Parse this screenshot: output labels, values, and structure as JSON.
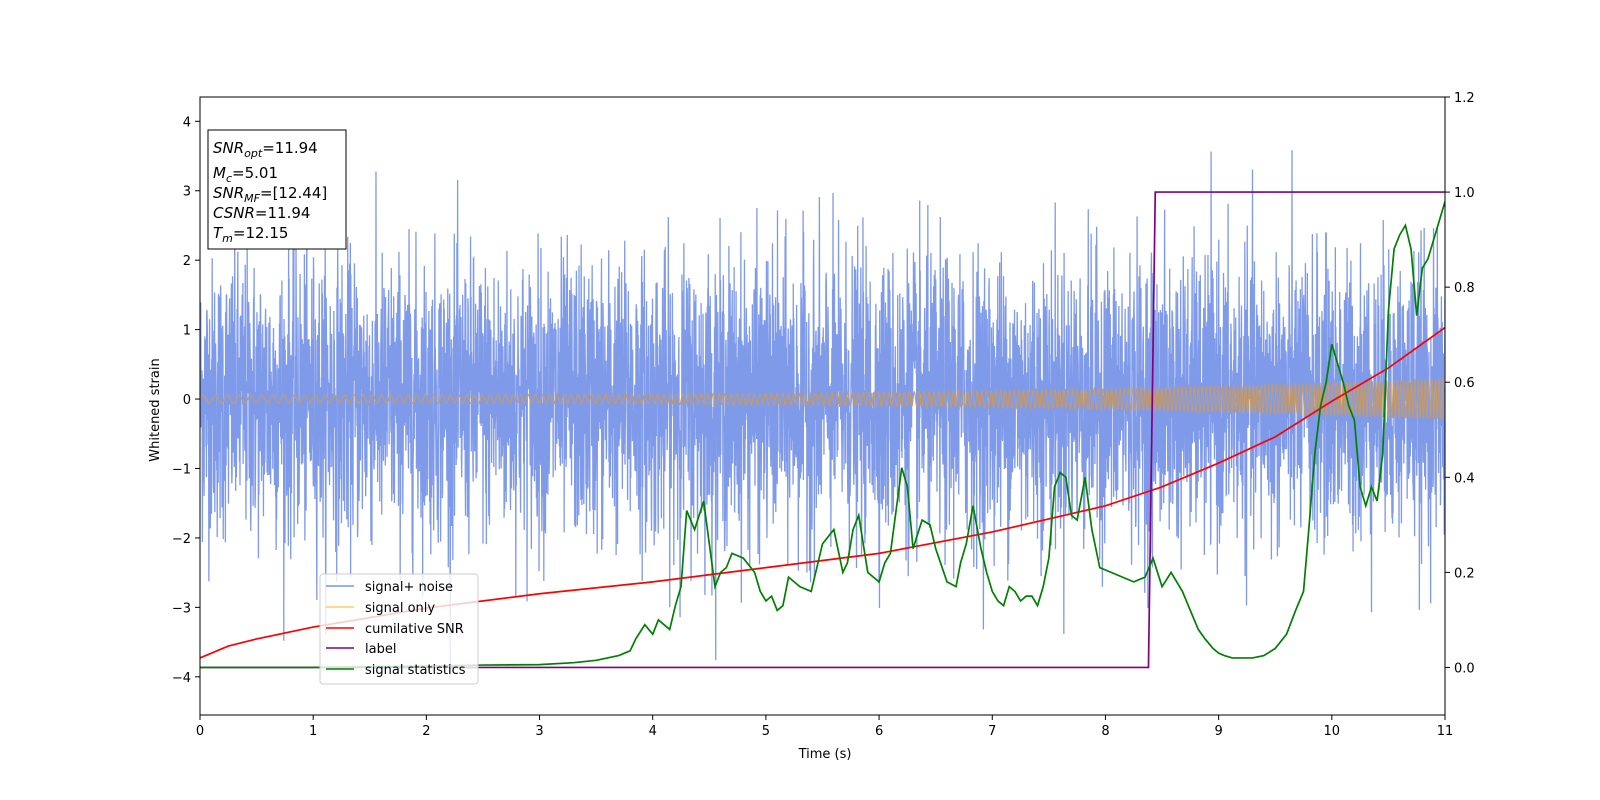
{
  "chart_data": {
    "type": "line",
    "xlabel": "Time (s)",
    "ylabel": "Whitened strain",
    "xlim": [
      0,
      11
    ],
    "ylim": [
      -4.55,
      4.35
    ],
    "y2lim": [
      -0.1,
      1.2
    ],
    "x_ticks": [
      "0",
      "1",
      "2",
      "3",
      "4",
      "5",
      "6",
      "7",
      "8",
      "9",
      "10",
      "11"
    ],
    "y_ticks": [
      "4",
      "3",
      "2",
      "1",
      "0",
      "−1",
      "−2",
      "−3",
      "−4"
    ],
    "y2_ticks": [
      "1.2",
      "1.0",
      "0.8",
      "0.6",
      "0.4",
      "0.2",
      "0.0"
    ],
    "grid": false,
    "legend_position": "lower-left",
    "info_box": {
      "snr_opt": {
        "sym": "SNR",
        "sub": "opt",
        "value": "=11.94"
      },
      "mc": {
        "sym": "M",
        "sub": "c",
        "value": "=5.01"
      },
      "snr_mf": {
        "sym": "SNR",
        "sub": "MF",
        "value": "=[12.44]"
      },
      "csnr": {
        "sym": "CSNR",
        "sub": "",
        "value": "=11.94"
      },
      "tm": {
        "sym": "T",
        "sub": "m",
        "value": "=12.15"
      }
    },
    "series": [
      {
        "name": "signal+ noise",
        "axis": "left",
        "color": "#7895e8",
        "noise_sigma": 1.0,
        "range": [
          -4.2,
          4.0
        ]
      },
      {
        "name": "signal only",
        "axis": "left",
        "color": "#c49a6c",
        "amplitude_start": 0.06,
        "amplitude_end": 0.3
      },
      {
        "name": "cumilative SNR",
        "axis": "right",
        "color": "#ff0000",
        "x": [
          0,
          0.25,
          0.5,
          1,
          2,
          3,
          4,
          5,
          6,
          7,
          8,
          8.5,
          9,
          9.5,
          10,
          10.5,
          11
        ],
        "y": [
          0.02,
          0.045,
          0.06,
          0.085,
          0.125,
          0.155,
          0.18,
          0.21,
          0.24,
          0.285,
          0.34,
          0.38,
          0.43,
          0.485,
          0.56,
          0.63,
          0.715
        ]
      },
      {
        "name": "label",
        "axis": "right",
        "color": "#800080",
        "x": [
          0,
          8.38,
          8.44,
          11
        ],
        "y": [
          0.0,
          0.0,
          1.0,
          1.0
        ]
      },
      {
        "name": "signal statistics",
        "axis": "right",
        "color": "#008000",
        "x": [
          0,
          1,
          2,
          2.5,
          3,
          3.3,
          3.5,
          3.7,
          3.8,
          3.85,
          3.93,
          4.0,
          4.05,
          4.15,
          4.2,
          4.25,
          4.3,
          4.37,
          4.45,
          4.5,
          4.55,
          4.6,
          4.65,
          4.7,
          4.8,
          4.9,
          4.95,
          5.0,
          5.05,
          5.1,
          5.15,
          5.2,
          5.3,
          5.4,
          5.5,
          5.6,
          5.68,
          5.72,
          5.77,
          5.82,
          5.9,
          6.0,
          6.05,
          6.1,
          6.2,
          6.25,
          6.3,
          6.38,
          6.45,
          6.5,
          6.6,
          6.68,
          6.72,
          6.77,
          6.83,
          6.9,
          6.95,
          7.0,
          7.05,
          7.1,
          7.15,
          7.2,
          7.25,
          7.3,
          7.35,
          7.4,
          7.45,
          7.5,
          7.55,
          7.6,
          7.65,
          7.7,
          7.75,
          7.82,
          7.88,
          7.95,
          8.05,
          8.15,
          8.25,
          8.35,
          8.42,
          8.5,
          8.58,
          8.63,
          8.68,
          8.75,
          8.82,
          8.88,
          8.95,
          9.0,
          9.05,
          9.12,
          9.2,
          9.3,
          9.4,
          9.5,
          9.6,
          9.68,
          9.75,
          9.8,
          9.85,
          9.9,
          9.95,
          10.0,
          10.05,
          10.1,
          10.15,
          10.2,
          10.25,
          10.3,
          10.35,
          10.4,
          10.45,
          10.5,
          10.55,
          10.6,
          10.65,
          10.7,
          10.75,
          10.8,
          10.85,
          10.9,
          10.95,
          11.0
        ],
        "y": [
          0.0,
          0.0,
          0.003,
          0.005,
          0.006,
          0.01,
          0.015,
          0.025,
          0.035,
          0.06,
          0.09,
          0.07,
          0.1,
          0.08,
          0.13,
          0.17,
          0.33,
          0.29,
          0.35,
          0.26,
          0.17,
          0.2,
          0.21,
          0.24,
          0.23,
          0.2,
          0.16,
          0.14,
          0.15,
          0.12,
          0.13,
          0.19,
          0.17,
          0.16,
          0.26,
          0.29,
          0.2,
          0.22,
          0.29,
          0.32,
          0.2,
          0.18,
          0.22,
          0.24,
          0.42,
          0.38,
          0.25,
          0.31,
          0.3,
          0.25,
          0.18,
          0.17,
          0.22,
          0.26,
          0.34,
          0.25,
          0.2,
          0.16,
          0.14,
          0.13,
          0.17,
          0.16,
          0.14,
          0.15,
          0.15,
          0.13,
          0.17,
          0.23,
          0.38,
          0.41,
          0.4,
          0.32,
          0.31,
          0.4,
          0.29,
          0.21,
          0.2,
          0.19,
          0.18,
          0.19,
          0.23,
          0.17,
          0.2,
          0.18,
          0.16,
          0.12,
          0.08,
          0.06,
          0.04,
          0.03,
          0.025,
          0.02,
          0.02,
          0.02,
          0.025,
          0.04,
          0.07,
          0.12,
          0.16,
          0.3,
          0.45,
          0.55,
          0.6,
          0.68,
          0.64,
          0.6,
          0.55,
          0.52,
          0.38,
          0.34,
          0.38,
          0.35,
          0.45,
          0.75,
          0.88,
          0.91,
          0.93,
          0.88,
          0.74,
          0.84,
          0.86,
          0.9,
          0.94,
          0.98
        ]
      }
    ]
  }
}
